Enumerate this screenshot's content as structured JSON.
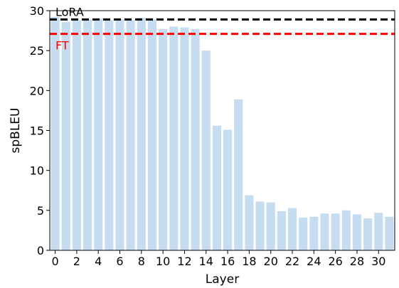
{
  "chart_data": {
    "type": "bar",
    "xlabel": "Layer",
    "ylabel": "spBLEU",
    "categories": [
      0,
      1,
      2,
      3,
      4,
      5,
      6,
      7,
      8,
      9,
      10,
      11,
      12,
      13,
      14,
      15,
      16,
      17,
      18,
      19,
      20,
      21,
      22,
      23,
      24,
      25,
      26,
      27,
      28,
      29,
      30,
      31
    ],
    "values": [
      29.2,
      28.6,
      28.8,
      28.9,
      29.0,
      28.8,
      28.9,
      28.8,
      29.1,
      28.9,
      27.7,
      28.0,
      27.9,
      27.7,
      25.0,
      15.6,
      15.1,
      18.9,
      6.9,
      6.1,
      6.0,
      4.9,
      5.3,
      4.1,
      4.2,
      4.6,
      4.6,
      5.0,
      4.5,
      4.0,
      4.7,
      4.2
    ],
    "bar_color": "#c6dcf1",
    "ylim": [
      0,
      30
    ],
    "yticks": [
      0,
      5,
      10,
      15,
      20,
      25,
      30
    ],
    "xticks": [
      0,
      2,
      4,
      6,
      8,
      10,
      12,
      14,
      16,
      18,
      20,
      22,
      24,
      26,
      28,
      30
    ],
    "reference_lines": [
      {
        "name": "LoRA",
        "value": 28.9,
        "color": "#000000",
        "style": "dashed"
      },
      {
        "name": "FT",
        "value": 27.1,
        "color": "#ff0000",
        "style": "dashed"
      }
    ],
    "grid": false,
    "legend": "none"
  }
}
